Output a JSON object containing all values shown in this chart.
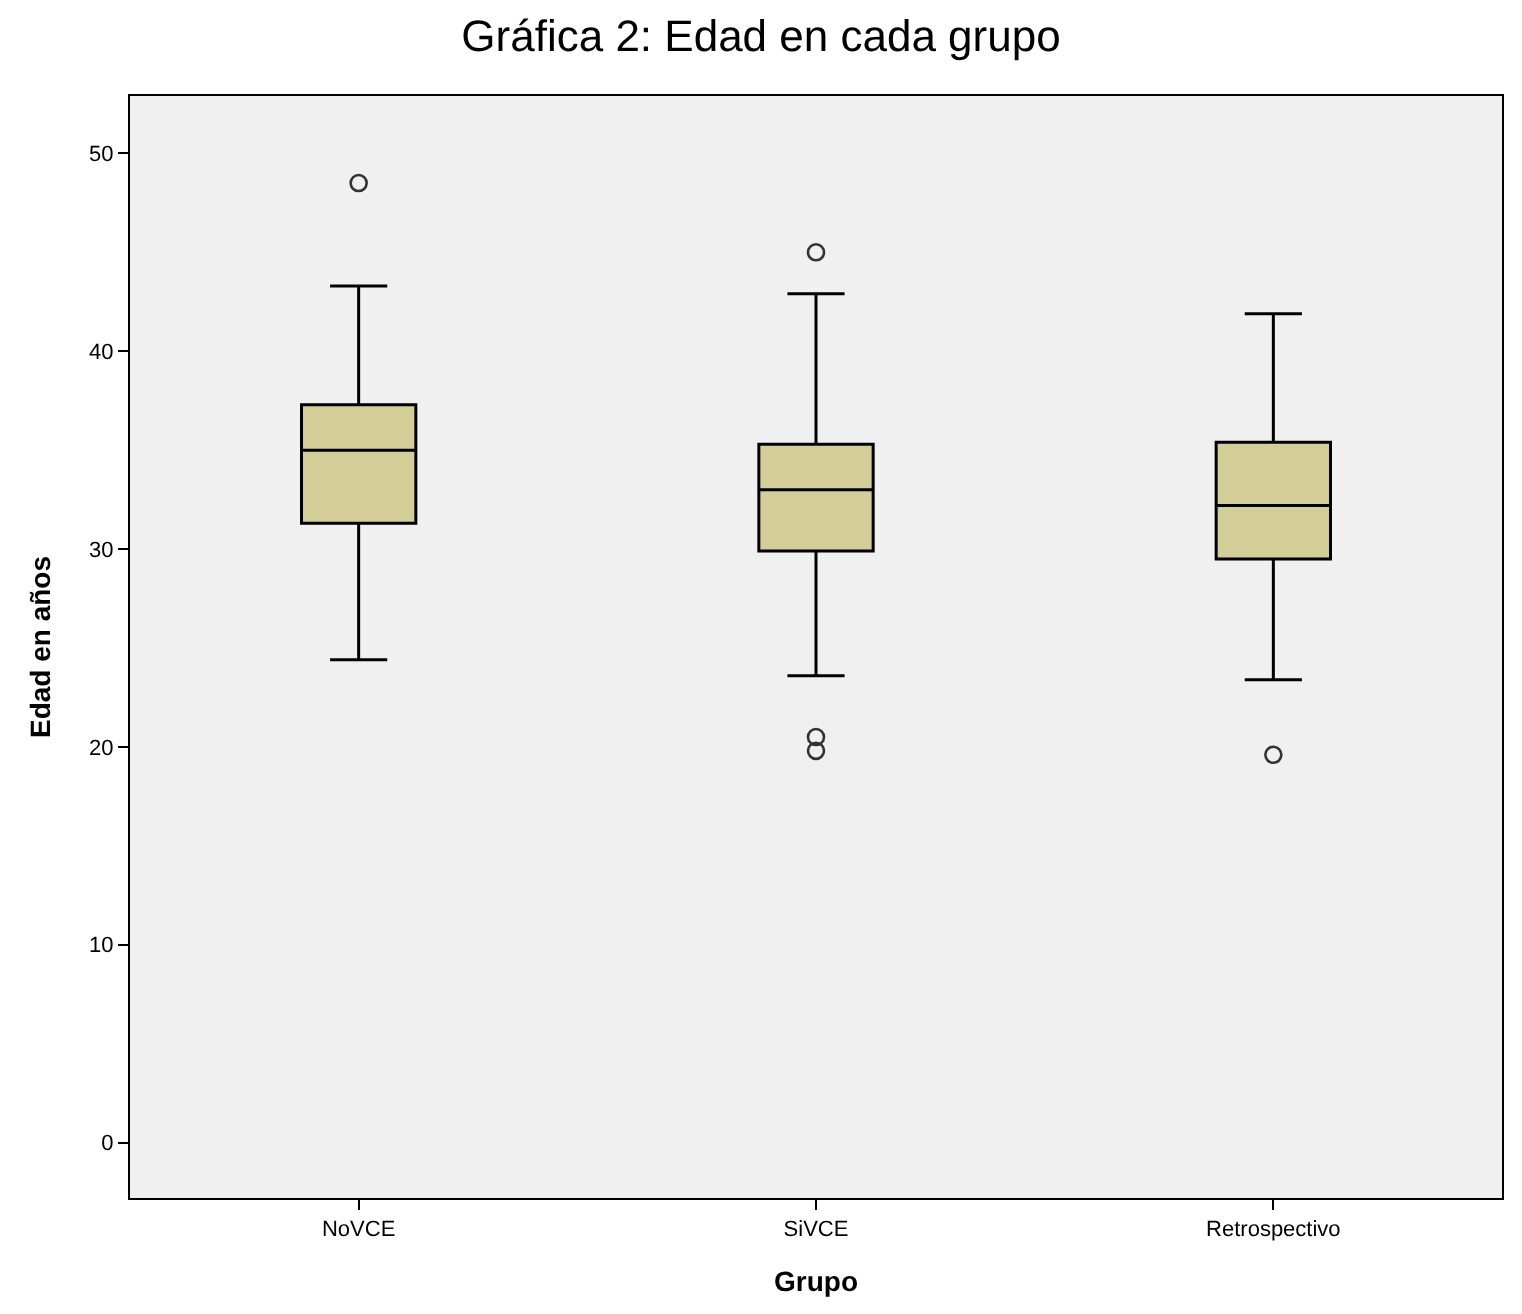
{
  "chart_data": {
    "type": "box",
    "title": "Gráfica 2: Edad en cada grupo",
    "xlabel": "Grupo",
    "ylabel": "Edad en años",
    "categories": [
      "NoVCE",
      "SiVCE",
      "Retrospectivo"
    ],
    "boxes": [
      {
        "low": 24.4,
        "q1": 31.3,
        "median": 35.0,
        "q3": 37.3,
        "high": 43.3,
        "outliers": [
          48.5
        ]
      },
      {
        "low": 23.6,
        "q1": 29.9,
        "median": 33.0,
        "q3": 35.3,
        "high": 42.9,
        "outliers": [
          45.0,
          20.5,
          19.8
        ]
      },
      {
        "low": 23.4,
        "q1": 29.5,
        "median": 32.2,
        "q3": 35.4,
        "high": 41.9,
        "outliers": [
          19.6
        ]
      }
    ],
    "color": "#d3ce97",
    "ylim": [
      -2.8,
      52.9
    ],
    "yticks": [
      0,
      10,
      20,
      30,
      40,
      50
    ],
    "grid": false,
    "legend": false
  }
}
